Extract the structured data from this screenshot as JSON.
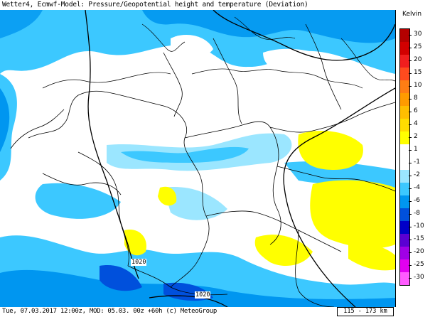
{
  "title": "Wetter4, Ecmwf-Model: Pressure/Geopotential height and temperature (Deviation)",
  "footer": "Tue, 07.03.2017 12:00z, MOD: 05.03. 00z +60h (c) MeteoGroup",
  "scale_label": "115 - 173 km",
  "legend": {
    "unit": "Kelvin",
    "items": [
      {
        "label": "30",
        "color": "#b40000"
      },
      {
        "label": "25",
        "color": "#d20000"
      },
      {
        "label": "20",
        "color": "#f01e1e"
      },
      {
        "label": "15",
        "color": "#ff4b1e"
      },
      {
        "label": "10",
        "color": "#ff7d14"
      },
      {
        "label": "8",
        "color": "#ff9b00"
      },
      {
        "label": "6",
        "color": "#ffbe00"
      },
      {
        "label": "4",
        "color": "#ffdc00"
      },
      {
        "label": "2",
        "color": "#ffff00"
      },
      {
        "label": "1",
        "color": "#ffffff"
      },
      {
        "label": "-1",
        "color": "#ffffff"
      },
      {
        "label": "-2",
        "color": "#9be6ff"
      },
      {
        "label": "-4",
        "color": "#3cc8ff"
      },
      {
        "label": "-6",
        "color": "#0096f0"
      },
      {
        "label": "-8",
        "color": "#0050dc"
      },
      {
        "label": "-10",
        "color": "#0000c8"
      },
      {
        "label": "-15",
        "color": "#5a00d2"
      },
      {
        "label": "-20",
        "color": "#a000e6"
      },
      {
        "label": "-25",
        "color": "#e100f0"
      },
      {
        "label": "-30",
        "color": "#ff5aff"
      }
    ]
  },
  "isobars": [
    {
      "label": "1020"
    },
    {
      "label": "1020"
    }
  ]
}
